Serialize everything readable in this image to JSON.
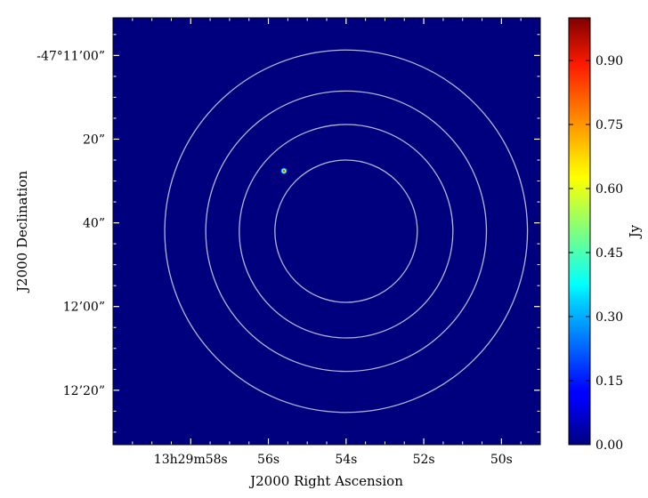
{
  "chart_data": {
    "type": "heatmap",
    "title": "",
    "xlabel": "J2000 Right Ascension",
    "ylabel": "J2000 Declination",
    "x_axis": {
      "unit": "seconds of RA after 13h29m",
      "range": [
        60.0,
        49.0
      ],
      "ticks": [
        {
          "value": 58,
          "label": "13h29m58s"
        },
        {
          "value": 56,
          "label": "56s"
        },
        {
          "value": 54,
          "label": "54s"
        },
        {
          "value": 52,
          "label": "52s"
        },
        {
          "value": 50,
          "label": "50s"
        }
      ]
    },
    "y_axis": {
      "unit": "arcsec south of -47°11'00\"",
      "range": [
        -9.0,
        93.0
      ],
      "ticks": [
        {
          "value": 0,
          "label": "-47°11’00”"
        },
        {
          "value": 20,
          "label": "20”"
        },
        {
          "value": 40,
          "label": "40”"
        },
        {
          "value": 60,
          "label": "12’00”"
        },
        {
          "value": 80,
          "label": "12’20”"
        }
      ]
    },
    "background_value": 0.0,
    "background_color": "#00007f",
    "sources": [
      {
        "ra_s": 55.6,
        "dec_arcsec": 27.6,
        "peak": 1.0
      }
    ],
    "circles": [
      {
        "center_ra_s": 54.0,
        "center_dec_arcsec": 42.0,
        "radius_arcsec": 17.0
      },
      {
        "center_ra_s": 54.0,
        "center_dec_arcsec": 42.0,
        "radius_arcsec": 25.5
      },
      {
        "center_ra_s": 54.0,
        "center_dec_arcsec": 42.0,
        "radius_arcsec": 33.5
      },
      {
        "center_ra_s": 54.0,
        "center_dec_arcsec": 42.0,
        "radius_arcsec": 43.3
      }
    ],
    "circle_color": "#b4b4dc",
    "grid": false,
    "colorbar": {
      "label": "Jy",
      "colormap": "jet",
      "range": [
        0.0,
        1.0
      ],
      "ticks": [
        {
          "value": 0.0,
          "label": "0.00"
        },
        {
          "value": 0.15,
          "label": "0.15"
        },
        {
          "value": 0.3,
          "label": "0.30"
        },
        {
          "value": 0.45,
          "label": "0.45"
        },
        {
          "value": 0.6,
          "label": "0.60"
        },
        {
          "value": 0.75,
          "label": "0.75"
        },
        {
          "value": 0.9,
          "label": "0.90"
        }
      ]
    }
  }
}
